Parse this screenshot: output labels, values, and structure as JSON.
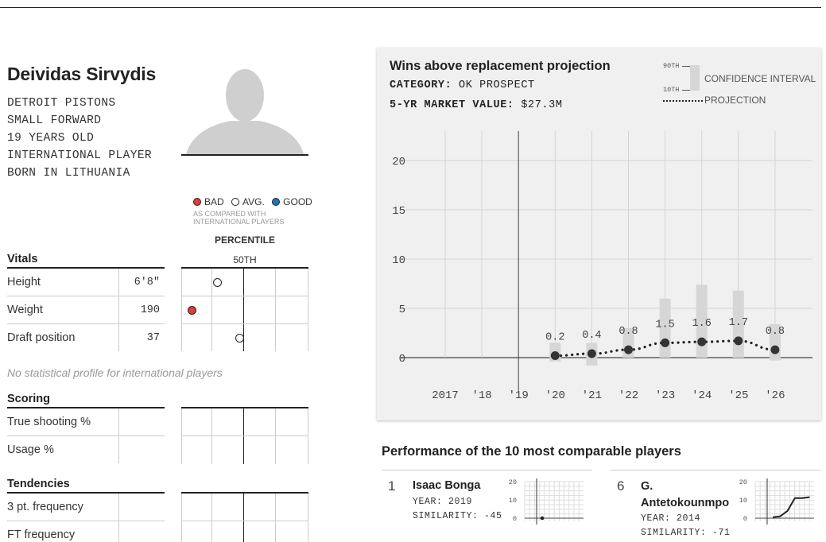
{
  "player": {
    "name": "Deividas Sirvydis",
    "bio": [
      "DETROIT PISTONS",
      "SMALL FORWARD",
      "19 YEARS OLD",
      "INTERNATIONAL PLAYER",
      "BORN IN LITHUANIA"
    ]
  },
  "legend": {
    "bad": "BAD",
    "avg": "AVG.",
    "good": "GOOD",
    "note_line1": "AS COMPARED WITH",
    "note_line2": "INTERNATIONAL PLAYERS",
    "colors": {
      "bad": "#e03c3c",
      "good": "#1f77b4",
      "avg": "#ffffff"
    }
  },
  "percentile": {
    "label": "PERCENTILE",
    "median_label": "50TH"
  },
  "vitals": {
    "title": "Vitals",
    "rows": [
      {
        "label": "Height",
        "value": "6'8\"",
        "percentile": 28,
        "rating": "avg"
      },
      {
        "label": "Weight",
        "value": "190",
        "percentile": 8,
        "rating": "bad"
      },
      {
        "label": "Draft position",
        "value": "37",
        "percentile": 46,
        "rating": "avg"
      }
    ]
  },
  "no_profile_note": "No statistical profile for international players",
  "scoring": {
    "title": "Scoring",
    "rows": [
      {
        "label": "True shooting %"
      },
      {
        "label": "Usage %"
      }
    ]
  },
  "tendencies": {
    "title": "Tendencies",
    "rows": [
      {
        "label": "3 pt. frequency"
      },
      {
        "label": "FT frequency"
      }
    ]
  },
  "war": {
    "title": "Wins above replacement projection",
    "category_label": "CATEGORY:",
    "category_value": "OK PROSPECT",
    "market_label": "5-YR MARKET VALUE:",
    "market_value": "$27.3M",
    "legend": {
      "p90": "90TH",
      "p10": "10TH",
      "ci_label": "CONFIDENCE INTERVAL",
      "proj_label": "PROJECTION"
    }
  },
  "chart_data": {
    "type": "line",
    "title": "Wins above replacement projection",
    "x_labels": [
      "2017",
      "'18",
      "'19",
      "'20",
      "'21",
      "'22",
      "'23",
      "'24",
      "'25",
      "'26"
    ],
    "ylim": [
      0,
      20
    ],
    "yticks": [
      0,
      5,
      10,
      15,
      20
    ],
    "grid": true,
    "divider_at": "'19",
    "series": [
      {
        "name": "PROJECTION",
        "x": [
          "'20",
          "'21",
          "'22",
          "'23",
          "'24",
          "'25",
          "'26"
        ],
        "values": [
          0.2,
          0.4,
          0.8,
          1.5,
          1.6,
          1.7,
          0.8
        ],
        "labels": [
          "0.2",
          "0.4",
          "0.8",
          "1.5",
          "1.6",
          "1.7",
          "0.8"
        ]
      },
      {
        "name": "CONFIDENCE INTERVAL",
        "x": [
          "'20",
          "'21",
          "'22",
          "'23",
          "'24",
          "'25",
          "'26"
        ],
        "low": [
          -0.4,
          -0.8,
          0.0,
          0.0,
          0.0,
          0.0,
          -0.3
        ],
        "high": [
          1.5,
          1.5,
          3.0,
          6.0,
          7.4,
          6.8,
          3.4
        ]
      }
    ]
  },
  "comparables": {
    "title": "Performance of the 10 most comparable players",
    "year_label": "YEAR:",
    "similarity_label": "SIMILARITY:",
    "players": [
      {
        "rank": "1",
        "name_line1": "Isaac Bonga",
        "name_line2": "",
        "year": "2019",
        "similarity": "-45",
        "spark": {
          "yticks": [
            "20",
            "10",
            "0"
          ],
          "points": [
            [
              0.0,
              0.0
            ]
          ]
        }
      },
      {
        "rank": "6",
        "name_line1": "G.",
        "name_line2": "Antetokounmpo",
        "year": "2014",
        "similarity": "-71",
        "spark": {
          "yticks": [
            "20",
            "10",
            "0"
          ],
          "points": [
            [
              0,
              0.5
            ],
            [
              1,
              1
            ],
            [
              2,
              4
            ],
            [
              3,
              11
            ],
            [
              4,
              11
            ],
            [
              5,
              11.5
            ]
          ]
        }
      }
    ]
  }
}
